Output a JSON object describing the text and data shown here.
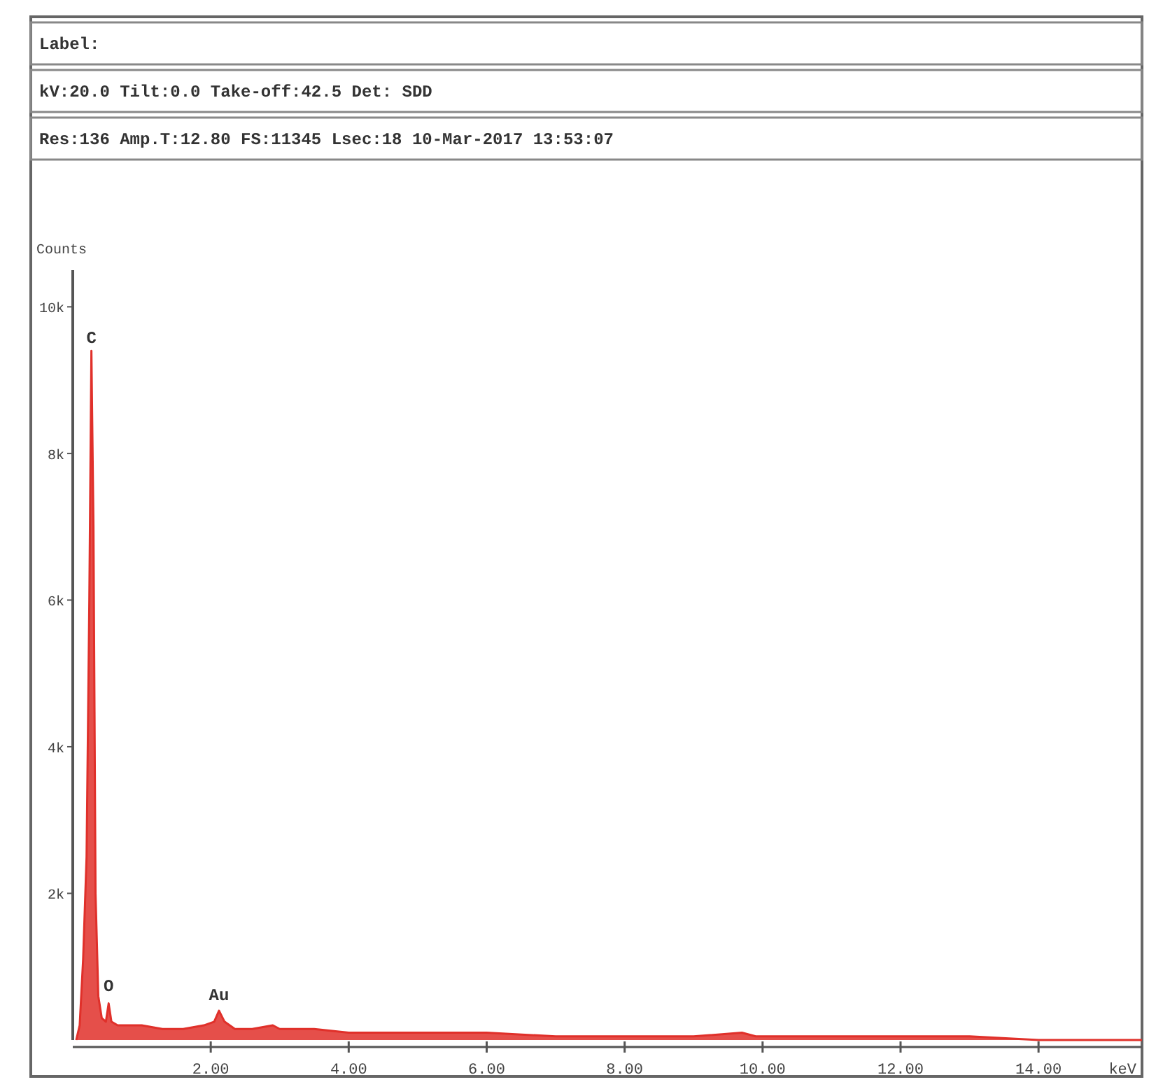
{
  "chart_data": {
    "type": "area",
    "xlabel": "keV",
    "ylabel": "Counts",
    "annotations": [
      "Label:",
      "kV:20.0 Tilt:0.0 Take-off:42.5   Det: SDD",
      "Res:136 Amp.T:12.80 FS:11345 Lsec:18 10-Mar-2017 13:53:07",
      {
        "text": "C",
        "x": 0.27,
        "y": 9350
      },
      {
        "text": "O",
        "x": 0.52,
        "y": 520
      },
      {
        "text": "Au",
        "x": 2.12,
        "y": 390
      }
    ],
    "series": [
      {
        "color": "#e0302a",
        "x": [
          0.05,
          0.1,
          0.15,
          0.2,
          0.24,
          0.27,
          0.3,
          0.33,
          0.37,
          0.42,
          0.48,
          0.52,
          0.56,
          0.65,
          0.8,
          1.0,
          1.3,
          1.6,
          1.9,
          2.05,
          2.12,
          2.2,
          2.35,
          2.6,
          2.9,
          3.0,
          3.5,
          4.0,
          5.0,
          6.0,
          7.0,
          8.0,
          9.0,
          9.7,
          9.9,
          11.0,
          12.0,
          13.0,
          14.0,
          15.0,
          15.5
        ],
        "values": [
          0,
          200,
          1100,
          2500,
          6000,
          9400,
          7000,
          2000,
          600,
          300,
          250,
          500,
          250,
          200,
          200,
          200,
          150,
          150,
          200,
          250,
          400,
          250,
          150,
          150,
          200,
          150,
          150,
          100,
          100,
          100,
          50,
          50,
          50,
          100,
          50,
          50,
          50,
          50,
          0,
          0,
          0
        ]
      }
    ],
    "xlim": [
      0,
      15.5
    ],
    "xticks": [
      {
        "value": 2,
        "label": "2.00"
      },
      {
        "value": 4,
        "label": "4.00"
      },
      {
        "value": 6,
        "label": "6.00"
      },
      {
        "value": 8,
        "label": "8.00"
      },
      {
        "value": 10,
        "label": "10.00"
      },
      {
        "value": 12,
        "label": "12.00"
      },
      {
        "value": 14,
        "label": "14.00"
      }
    ],
    "ylim": [
      0,
      10500
    ],
    "yticks": [
      {
        "value": 2000,
        "label": "2k"
      },
      {
        "value": 4000,
        "label": "4k"
      },
      {
        "value": 6000,
        "label": "6k"
      },
      {
        "value": 8000,
        "label": "8k"
      },
      {
        "value": 10000,
        "label": "10k"
      }
    ],
    "grid": false
  }
}
